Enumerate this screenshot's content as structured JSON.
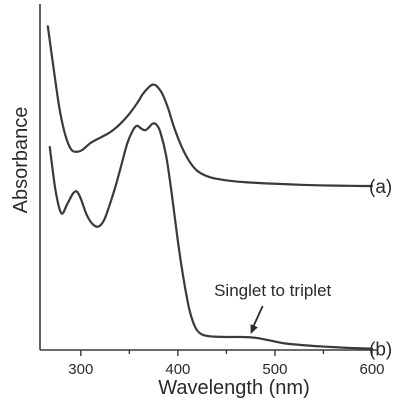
{
  "chart_data": {
    "type": "line",
    "xlabel": "Wavelength (nm)",
    "ylabel": "Absorbance",
    "xlim": [
      260,
      600
    ],
    "ylim": [
      0,
      1.3
    ],
    "x_ticks": [
      300,
      400,
      500,
      600
    ],
    "x_tick_labels": [
      "300",
      "400",
      "500",
      "600"
    ],
    "y_ticks_shown": false,
    "grid": false,
    "legend": "none",
    "series": [
      {
        "name": "(a)",
        "x": [
          266,
          272,
          278,
          284,
          290,
          296,
          302,
          310,
          320,
          330,
          340,
          350,
          358,
          364,
          370,
          374,
          378,
          384,
          390,
          396,
          404,
          412,
          420,
          430,
          440,
          455,
          470,
          490,
          510,
          530,
          550,
          570,
          590,
          600
        ],
        "values": [
          1.22,
          1.06,
          0.91,
          0.81,
          0.756,
          0.747,
          0.755,
          0.78,
          0.8,
          0.82,
          0.85,
          0.89,
          0.93,
          0.965,
          0.99,
          1.0,
          0.995,
          0.965,
          0.91,
          0.84,
          0.765,
          0.71,
          0.675,
          0.655,
          0.645,
          0.637,
          0.632,
          0.628,
          0.625,
          0.622,
          0.62,
          0.619,
          0.618,
          0.618
        ]
      },
      {
        "name": "(b)",
        "x": [
          268,
          274,
          280,
          286,
          292,
          296,
          300,
          306,
          312,
          318,
          324,
          330,
          336,
          342,
          348,
          354,
          358,
          362,
          366,
          370,
          374,
          378,
          382,
          388,
          394,
          400,
          406,
          412,
          418,
          424,
          432,
          440,
          450,
          465,
          480,
          495,
          510,
          530,
          550,
          570,
          590,
          600
        ],
        "values": [
          0.765,
          0.6,
          0.515,
          0.55,
          0.59,
          0.597,
          0.57,
          0.51,
          0.475,
          0.465,
          0.49,
          0.55,
          0.62,
          0.7,
          0.78,
          0.83,
          0.845,
          0.835,
          0.828,
          0.838,
          0.853,
          0.849,
          0.82,
          0.73,
          0.58,
          0.41,
          0.265,
          0.15,
          0.085,
          0.06,
          0.052,
          0.05,
          0.049,
          0.049,
          0.046,
          0.036,
          0.025,
          0.018,
          0.013,
          0.009,
          0.006,
          0.005
        ]
      }
    ],
    "annotations": [
      {
        "text": "Singlet to triplet",
        "x": 475,
        "y": 0.049
      }
    ]
  }
}
